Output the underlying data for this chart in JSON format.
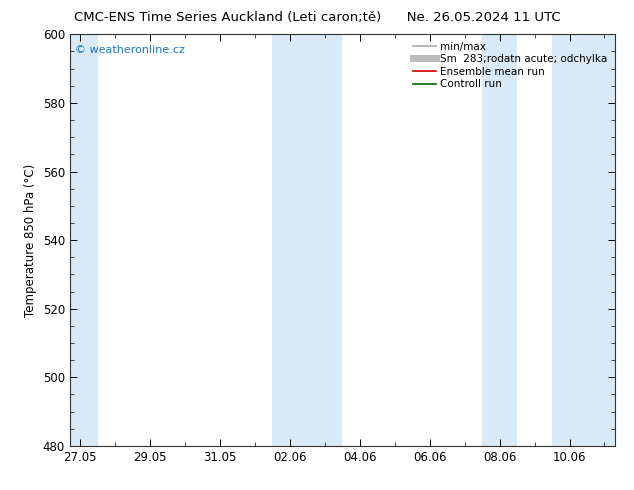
{
  "title": "CMC-ENS Time Series Auckland (Leti caron;tě)      Ne. 26.05.2024 11 UTC",
  "ylabel": "Temperature 850 hPa (°C)",
  "ylim": [
    480,
    600
  ],
  "yticks": [
    480,
    500,
    520,
    540,
    560,
    580,
    600
  ],
  "x_tick_labels": [
    "27.05",
    "29.05",
    "31.05",
    "02.06",
    "04.06",
    "06.06",
    "08.06",
    "10.06"
  ],
  "x_tick_positions": [
    0,
    2,
    4,
    6,
    8,
    10,
    12,
    14
  ],
  "x_lim": [
    -0.3,
    15.3
  ],
  "bg_color": "#ffffff",
  "plot_bg_color": "#ffffff",
  "shaded_bands": [
    {
      "x_start": -0.3,
      "x_end": 0.5,
      "color": "#d8eaf7"
    },
    {
      "x_start": 5.5,
      "x_end": 7.5,
      "color": "#d8eaf7"
    },
    {
      "x_start": 11.5,
      "x_end": 12.5,
      "color": "#d8eaf7"
    },
    {
      "x_start": 13.5,
      "x_end": 15.3,
      "color": "#d8eaf7"
    }
  ],
  "legend_entries": [
    {
      "label": "min/max",
      "color": "#aaaaaa",
      "lw": 1.2,
      "linestyle": "-"
    },
    {
      "label": "Sm  283;rodatn acute; odchylka",
      "color": "#bbbbbb",
      "lw": 5,
      "linestyle": "-"
    },
    {
      "label": "Ensemble mean run",
      "color": "#cc0000",
      "lw": 1.2,
      "linestyle": "-"
    },
    {
      "label": "Controll run",
      "color": "#006600",
      "lw": 1.2,
      "linestyle": "-"
    }
  ],
  "watermark": "© weatheronline.cz",
  "watermark_color": "#1a7ac0",
  "font_color": "#000000",
  "title_fontsize": 9.5,
  "axis_fontsize": 8.5,
  "legend_fontsize": 7.5,
  "watermark_fontsize": 8
}
